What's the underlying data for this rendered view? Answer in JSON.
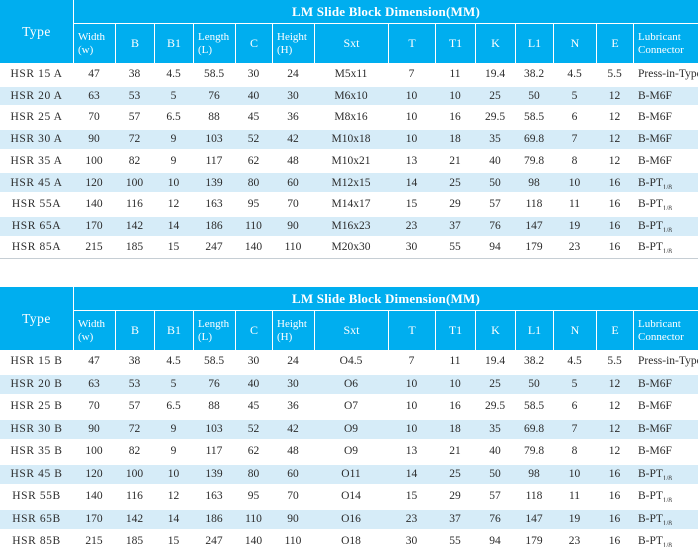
{
  "colors": {
    "header_cyan": "#00AEEF",
    "stripe_blue": "#D6ECF8",
    "header_text": "#FFFFFF",
    "body_text": "#2B2B2B",
    "table_border": "#C6CED4"
  },
  "tables": [
    {
      "id": "A",
      "type_header": "Type",
      "title": "LM Slide Block Dimension(MM)",
      "columns": [
        "Width\n(w)",
        "B",
        "B1",
        "Length\n(L)",
        "C",
        "Height\n(H)",
        "Sxt",
        "T",
        "T1",
        "K",
        "L1",
        "N",
        "E",
        "Lubricant\nConnector"
      ],
      "rows": [
        [
          "HSR 15 A",
          "47",
          "38",
          "4.5",
          "58.5",
          "30",
          "24",
          "M5x11",
          "7",
          "11",
          "19.4",
          "38.2",
          "4.5",
          "5.5",
          "Press-in-Type"
        ],
        [
          "HSR 20 A",
          "63",
          "53",
          "5",
          "76",
          "40",
          "30",
          "M6x10",
          "10",
          "10",
          "25",
          "50",
          "5",
          "12",
          "B-M6F"
        ],
        [
          "HSR 25 A",
          "70",
          "57",
          "6.5",
          "88",
          "45",
          "36",
          "M8x16",
          "10",
          "16",
          "29.5",
          "58.5",
          "6",
          "12",
          "B-M6F"
        ],
        [
          "HSR 30 A",
          "90",
          "72",
          "9",
          "103",
          "52",
          "42",
          "M10x18",
          "10",
          "18",
          "35",
          "69.8",
          "7",
          "12",
          "B-M6F"
        ],
        [
          "HSR 35 A",
          "100",
          "82",
          "9",
          "117",
          "62",
          "48",
          "M10x21",
          "13",
          "21",
          "40",
          "79.8",
          "8",
          "12",
          "B-M6F"
        ],
        [
          "HSR 45 A",
          "120",
          "100",
          "10",
          "139",
          "80",
          "60",
          "M12x15",
          "14",
          "25",
          "50",
          "98",
          "10",
          "16",
          "B-PT⅛"
        ],
        [
          "HSR 55A",
          "140",
          "116",
          "12",
          "163",
          "95",
          "70",
          "M14x17",
          "15",
          "29",
          "57",
          "118",
          "11",
          "16",
          "B-PT⅛"
        ],
        [
          "HSR 65A",
          "170",
          "142",
          "14",
          "186",
          "110",
          "90",
          "M16x23",
          "23",
          "37",
          "76",
          "147",
          "19",
          "16",
          "B-PT⅛"
        ],
        [
          "HSR 85A",
          "215",
          "185",
          "15",
          "247",
          "140",
          "110",
          "M20x30",
          "30",
          "55",
          "94",
          "179",
          "23",
          "16",
          "B-PT⅛"
        ]
      ]
    },
    {
      "id": "B",
      "type_header": "Type",
      "title": "LM Slide Block Dimension(MM)",
      "columns": [
        "Width\n(w)",
        "B",
        "B1",
        "Length\n(L)",
        "C",
        "Height\n(H)",
        "Sxt",
        "T",
        "T1",
        "K",
        "L1",
        "N",
        "E",
        "Lubricant\nConnector"
      ],
      "rows": [
        [
          "HSR 15 B",
          "47",
          "38",
          "4.5",
          "58.5",
          "30",
          "24",
          "O4.5",
          "7",
          "11",
          "19.4",
          "38.2",
          "4.5",
          "5.5",
          "Press-in-Type"
        ],
        [
          "HSR 20 B",
          "63",
          "53",
          "5",
          "76",
          "40",
          "30",
          "O6",
          "10",
          "10",
          "25",
          "50",
          "5",
          "12",
          "B-M6F"
        ],
        [
          "HSR 25 B",
          "70",
          "57",
          "6.5",
          "88",
          "45",
          "36",
          "O7",
          "10",
          "16",
          "29.5",
          "58.5",
          "6",
          "12",
          "B-M6F"
        ],
        [
          "HSR 30 B",
          "90",
          "72",
          "9",
          "103",
          "52",
          "42",
          "O9",
          "10",
          "18",
          "35",
          "69.8",
          "7",
          "12",
          "B-M6F"
        ],
        [
          "HSR 35 B",
          "100",
          "82",
          "9",
          "117",
          "62",
          "48",
          "O9",
          "13",
          "21",
          "40",
          "79.8",
          "8",
          "12",
          "B-M6F"
        ],
        [
          "HSR 45 B",
          "120",
          "100",
          "10",
          "139",
          "80",
          "60",
          "O11",
          "14",
          "25",
          "50",
          "98",
          "10",
          "16",
          "B-PT⅛"
        ],
        [
          "HSR 55B",
          "140",
          "116",
          "12",
          "163",
          "95",
          "70",
          "O14",
          "15",
          "29",
          "57",
          "118",
          "11",
          "16",
          "B-PT⅛"
        ],
        [
          "HSR 65B",
          "170",
          "142",
          "14",
          "186",
          "110",
          "90",
          "O16",
          "23",
          "37",
          "76",
          "147",
          "19",
          "16",
          "B-PT⅛"
        ],
        [
          "HSR 85B",
          "215",
          "185",
          "15",
          "247",
          "140",
          "110",
          "O18",
          "30",
          "55",
          "94",
          "179",
          "23",
          "16",
          "B-PT⅛"
        ]
      ]
    }
  ]
}
